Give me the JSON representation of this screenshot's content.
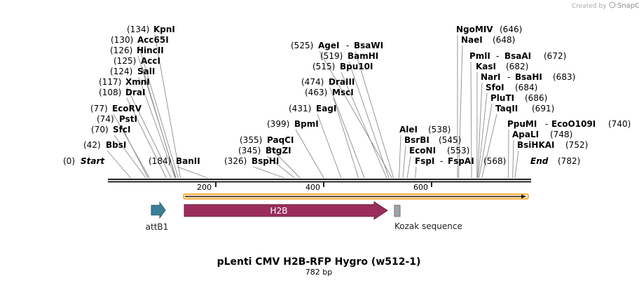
{
  "credit": {
    "text": "Created by",
    "brand": "SnapGene"
  },
  "title": "pLenti CMV H2B-RFP Hygro (w512-1)",
  "subtitle": "782 bp",
  "start_label": "Start",
  "start_pos": "(0)",
  "end_label": "End",
  "end_pos": "(782)",
  "length": 782,
  "ticks": [
    "200",
    "400",
    "600"
  ],
  "sites": [
    {
      "id": "kpni",
      "name": "KpnI",
      "pos": "(134)",
      "at": 134
    },
    {
      "id": "acc65i",
      "name": "Acc65I",
      "pos": "(130)",
      "at": 130
    },
    {
      "id": "hincii",
      "name": "HincII",
      "pos": "(126)",
      "at": 126
    },
    {
      "id": "acci",
      "name": "AccI",
      "pos": "(125)",
      "at": 125
    },
    {
      "id": "sali",
      "name": "SalI",
      "pos": "(124)",
      "at": 124
    },
    {
      "id": "xmni",
      "name": "XmnI",
      "pos": "(117)",
      "at": 117
    },
    {
      "id": "drai",
      "name": "DraI",
      "pos": "(108)",
      "at": 108
    },
    {
      "id": "ecorv",
      "name": "EcoRV",
      "pos": "(77)",
      "at": 77
    },
    {
      "id": "psti",
      "name": "PstI",
      "pos": "(74)",
      "at": 74
    },
    {
      "id": "sfci",
      "name": "SfcI",
      "pos": "(70)",
      "at": 70
    },
    {
      "id": "bbsi",
      "name": "BbsI",
      "pos": "(42)",
      "at": 42
    },
    {
      "id": "banii",
      "name": "BanII",
      "pos": "(184)",
      "at": 184
    },
    {
      "id": "agei",
      "name": "AgeI",
      "pos": "(525)",
      "at": 525
    },
    {
      "id": "bsawi",
      "name": "BsaWI",
      "pos": "",
      "at": 528
    },
    {
      "id": "bamhi",
      "name": "BamHI",
      "pos": "(519)",
      "at": 519
    },
    {
      "id": "bpu10i",
      "name": "Bpu10I",
      "pos": "(515)",
      "at": 515
    },
    {
      "id": "draiii",
      "name": "DraIII",
      "pos": "(474)",
      "at": 474
    },
    {
      "id": "msci",
      "name": "MscI",
      "pos": "(463)",
      "at": 463
    },
    {
      "id": "eagi",
      "name": "EagI",
      "pos": "(431)",
      "at": 431
    },
    {
      "id": "bpmi",
      "name": "BpmI",
      "pos": "(399)",
      "at": 399
    },
    {
      "id": "paqci",
      "name": "PaqCI",
      "pos": "(355)",
      "at": 355
    },
    {
      "id": "btgzi",
      "name": "BtgZI",
      "pos": "(345)",
      "at": 345
    },
    {
      "id": "bsphi",
      "name": "BspHI",
      "pos": "(326)",
      "at": 326
    },
    {
      "id": "alei",
      "name": "AleI",
      "pos": "(538)",
      "at": 538
    },
    {
      "id": "bsrbi",
      "name": "BsrBI",
      "pos": "(545)",
      "at": 545
    },
    {
      "id": "econi",
      "name": "EcoNI",
      "pos": "(553)",
      "at": 553
    },
    {
      "id": "fspi",
      "name": "FspI",
      "pos": "",
      "at": 568
    },
    {
      "id": "fspai",
      "name": "FspAI",
      "pos": "(568)",
      "at": 568
    },
    {
      "id": "ngomiv",
      "name": "NgoMIV",
      "pos": "(646)",
      "at": 646
    },
    {
      "id": "naei",
      "name": "NaeI",
      "pos": "(648)",
      "at": 648
    },
    {
      "id": "pmli",
      "name": "PmlI",
      "pos": "",
      "at": 672
    },
    {
      "id": "bsaai",
      "name": "BsaAI",
      "pos": "(672)",
      "at": 672
    },
    {
      "id": "kasi",
      "name": "KasI",
      "pos": "(682)",
      "at": 682
    },
    {
      "id": "nari",
      "name": "NarI",
      "pos": "",
      "at": 683
    },
    {
      "id": "bsahi",
      "name": "BsaHI",
      "pos": "(683)",
      "at": 683
    },
    {
      "id": "sfoi",
      "name": "SfoI",
      "pos": "(684)",
      "at": 684
    },
    {
      "id": "pluti",
      "name": "PluTI",
      "pos": "(686)",
      "at": 686
    },
    {
      "id": "taqii",
      "name": "TaqII",
      "pos": "(691)",
      "at": 691
    },
    {
      "id": "ppumi",
      "name": "PpuMI",
      "pos": "",
      "at": 740
    },
    {
      "id": "ecoo109i",
      "name": "EcoO109I",
      "pos": "(740)",
      "at": 740
    },
    {
      "id": "apali",
      "name": "ApaLI",
      "pos": "(748)",
      "at": 748
    },
    {
      "id": "bsihkai",
      "name": "BsiHKAI",
      "pos": "(752)",
      "at": 752
    }
  ],
  "features": [
    {
      "id": "attb1",
      "name": "attB1",
      "color": "#3a7f95",
      "start": 80,
      "end": 105
    },
    {
      "id": "h2b",
      "name": "H2B",
      "color": "#9a2d5c",
      "start": 140,
      "end": 540
    },
    {
      "id": "kozak",
      "name": "Kozak sequence",
      "color": "#9ea3a8",
      "start": 548,
      "end": 557
    }
  ],
  "orf": {
    "color": "#f0a020",
    "start": 140,
    "end": 776
  }
}
